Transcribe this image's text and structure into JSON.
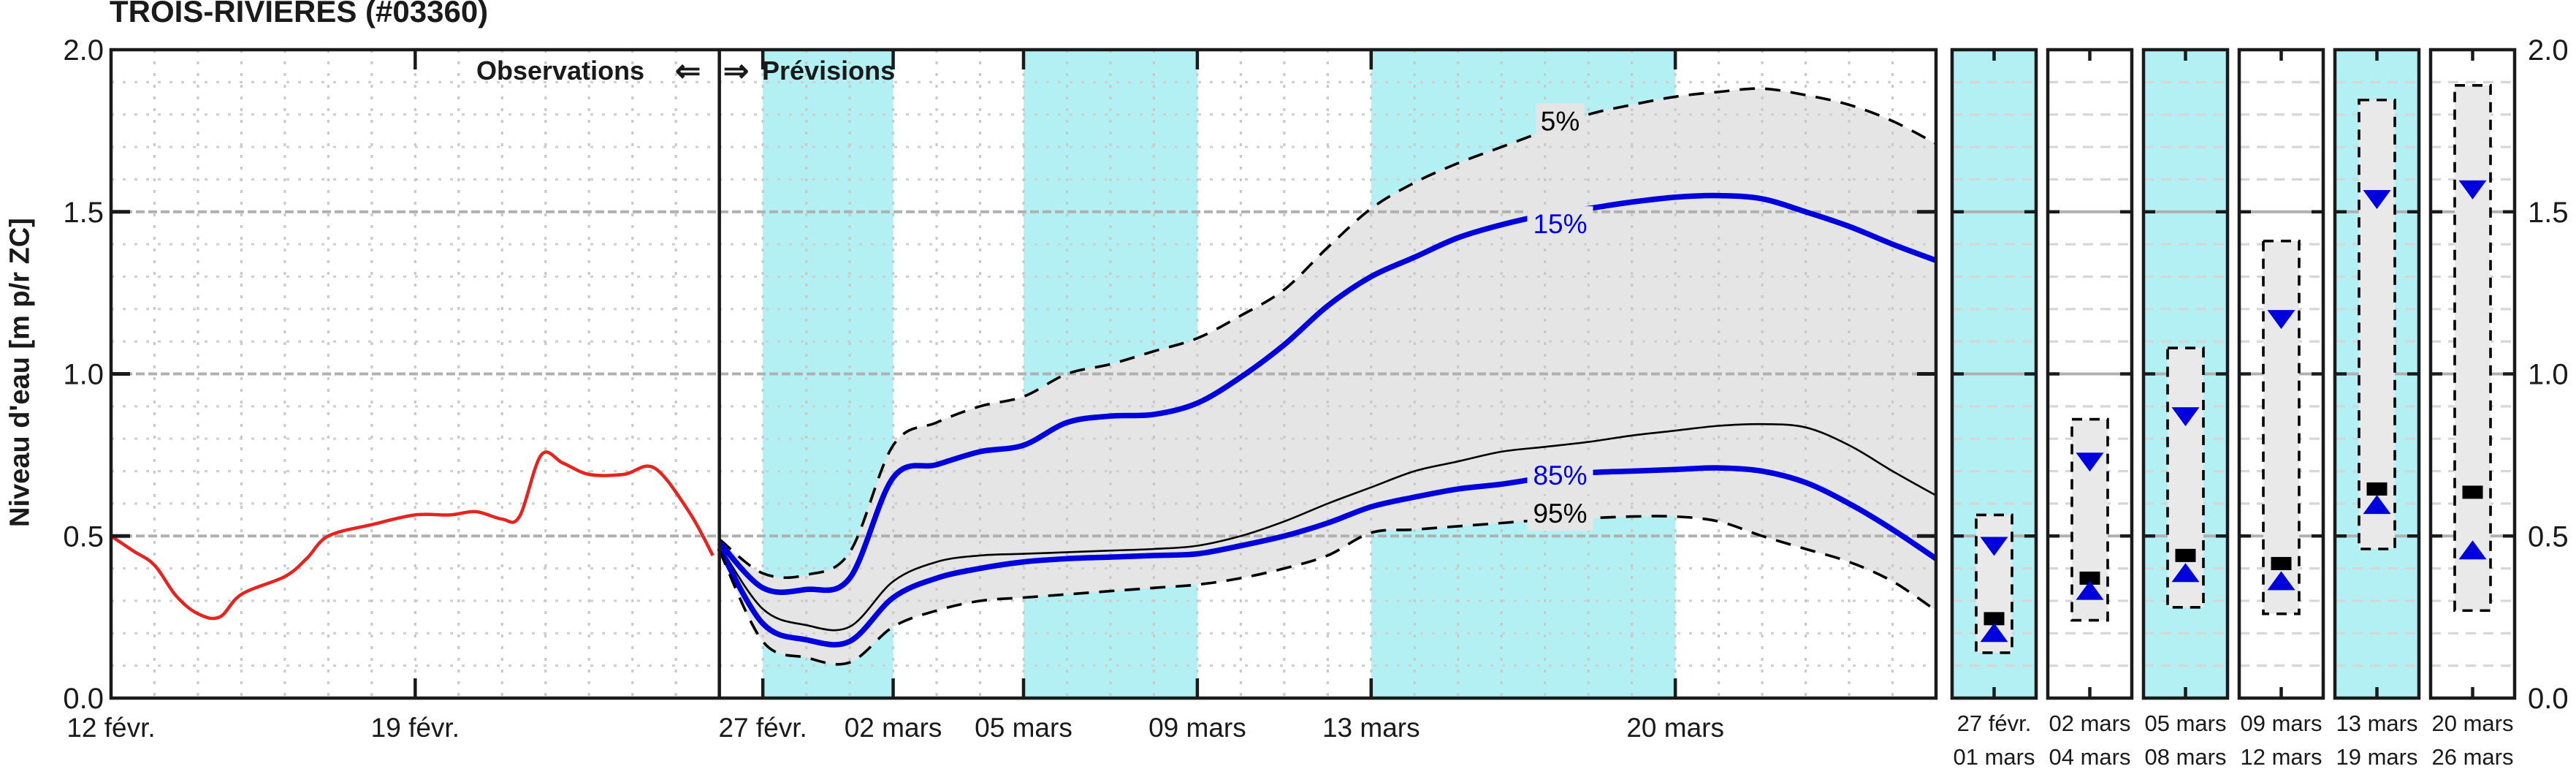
{
  "title": "TROIS-RIVIERES (#03360)",
  "header": {
    "observations": "Observations",
    "arrow_left": "⇐",
    "arrow_right": "⇒",
    "previsions": "Prévisions"
  },
  "y_axis_label": "Niveau d'eau [m p/r ZC]",
  "colors": {
    "observed_red": "#e52420",
    "forecast_blue": "#0000dd",
    "median_black": "#000000",
    "quantile_dash_black": "#000000",
    "band_cyan": "#b2f0f4",
    "fan_fill_gray": "#e5e5e5",
    "panel_box_fill": "#e9e9e9",
    "grid_minor": "#d0d0d0",
    "grid_major": "#b0b0b0",
    "axis_black": "#1a1a1a"
  },
  "chart_data": {
    "type": "line",
    "title": "TROIS-RIVIERES (#03360)",
    "ylabel": "Niveau d'eau [m p/r ZC]",
    "ylim": [
      0.0,
      2.0
    ],
    "y_tick_step_minor": 0.1,
    "y_major_ticks": [
      {
        "value": 2.0,
        "label": "2.0"
      },
      {
        "value": 1.5,
        "label": "1.5"
      },
      {
        "value": 1.0,
        "label": "1.0"
      },
      {
        "value": 0.5,
        "label": "0.5"
      },
      {
        "value": 0.0,
        "label": "0.0"
      }
    ],
    "x_days_total": 42,
    "x_ticks": [
      {
        "day": 0,
        "label": "12 févr."
      },
      {
        "day": 7,
        "label": "19 févr."
      },
      {
        "day": 15,
        "label": "27 févr."
      },
      {
        "day": 18,
        "label": "02 mars"
      },
      {
        "day": 21,
        "label": "05 mars"
      },
      {
        "day": 25,
        "label": "09 mars"
      },
      {
        "day": 29,
        "label": "13 mars"
      },
      {
        "day": 36,
        "label": "20 mars"
      }
    ],
    "forecast_start_day": 14,
    "weekend_bands_days": [
      [
        15,
        18
      ],
      [
        21,
        25
      ],
      [
        29,
        36
      ]
    ],
    "observed_series": {
      "name": "Observations",
      "points": [
        [
          0,
          0.5
        ],
        [
          0.5,
          0.455
        ],
        [
          1,
          0.41
        ],
        [
          1.5,
          0.315
        ],
        [
          2,
          0.26
        ],
        [
          2.5,
          0.25
        ],
        [
          3,
          0.32
        ],
        [
          4,
          0.375
        ],
        [
          4.5,
          0.43
        ],
        [
          5,
          0.5
        ],
        [
          6,
          0.535
        ],
        [
          7,
          0.565
        ],
        [
          7.8,
          0.565
        ],
        [
          8.4,
          0.575
        ],
        [
          9,
          0.552
        ],
        [
          9.4,
          0.56
        ],
        [
          9.9,
          0.75
        ],
        [
          10.4,
          0.725
        ],
        [
          11,
          0.69
        ],
        [
          11.8,
          0.69
        ],
        [
          12.5,
          0.71
        ],
        [
          13.3,
          0.575
        ],
        [
          13.85,
          0.44
        ]
      ]
    },
    "forecast_series": [
      {
        "name": "5%",
        "style": "dashed",
        "values": [
          0.49,
          0.385,
          0.38,
          0.45,
          0.78,
          0.85,
          0.9,
          0.93,
          1.0,
          1.03,
          1.07,
          1.11,
          1.18,
          1.26,
          1.39,
          1.51,
          1.59,
          1.65,
          1.7,
          1.75,
          1.8,
          1.83,
          1.855,
          1.87,
          1.88,
          1.86,
          1.83,
          1.78,
          1.71
        ]
      },
      {
        "name": "15%",
        "style": "blue",
        "values": [
          0.48,
          0.34,
          0.335,
          0.37,
          0.68,
          0.72,
          0.76,
          0.78,
          0.85,
          0.87,
          0.875,
          0.91,
          0.99,
          1.09,
          1.21,
          1.3,
          1.36,
          1.42,
          1.46,
          1.49,
          1.51,
          1.53,
          1.545,
          1.55,
          1.54,
          1.5,
          1.455,
          1.4,
          1.35
        ]
      },
      {
        "name": "50%",
        "style": "median",
        "values": [
          0.47,
          0.275,
          0.225,
          0.22,
          0.36,
          0.42,
          0.44,
          0.445,
          0.45,
          0.455,
          0.46,
          0.47,
          0.5,
          0.545,
          0.6,
          0.65,
          0.7,
          0.73,
          0.76,
          0.775,
          0.79,
          0.81,
          0.825,
          0.84,
          0.845,
          0.835,
          0.78,
          0.7,
          0.625
        ]
      },
      {
        "name": "85%",
        "style": "blue",
        "values": [
          0.462,
          0.23,
          0.18,
          0.175,
          0.31,
          0.37,
          0.4,
          0.42,
          0.43,
          0.435,
          0.44,
          0.445,
          0.47,
          0.5,
          0.54,
          0.59,
          0.62,
          0.645,
          0.66,
          0.68,
          0.695,
          0.7,
          0.705,
          0.71,
          0.7,
          0.665,
          0.6,
          0.52,
          0.43
        ]
      },
      {
        "name": "95%",
        "style": "dashed",
        "values": [
          0.455,
          0.175,
          0.125,
          0.11,
          0.22,
          0.27,
          0.3,
          0.31,
          0.32,
          0.33,
          0.34,
          0.35,
          0.37,
          0.4,
          0.44,
          0.51,
          0.52,
          0.53,
          0.54,
          0.55,
          0.555,
          0.56,
          0.56,
          0.545,
          0.5,
          0.46,
          0.42,
          0.36,
          0.27
        ]
      }
    ],
    "curve_labels": [
      {
        "text": "5%",
        "day": 33.35,
        "value": 1.78,
        "color": "black"
      },
      {
        "text": "15%",
        "day": 33.35,
        "value": 1.463,
        "color": "blue"
      },
      {
        "text": "85%",
        "day": 33.35,
        "value": 0.688,
        "color": "blue"
      },
      {
        "text": "95%",
        "day": 33.35,
        "value": 0.57,
        "color": "black"
      }
    ],
    "panels": [
      {
        "label_top": "27 févr.",
        "label_bottom": "01 mars",
        "background": "cyan",
        "range": [
          0.14,
          0.565
        ],
        "tri_down": 0.47,
        "square": 0.245,
        "tri_up": 0.2
      },
      {
        "label_top": "02 mars",
        "label_bottom": "04 mars",
        "background": "white",
        "range": [
          0.24,
          0.86
        ],
        "tri_down": 0.73,
        "square": 0.37,
        "tri_up": 0.33
      },
      {
        "label_top": "05 mars",
        "label_bottom": "08 mars",
        "background": "cyan",
        "range": [
          0.28,
          1.08
        ],
        "tri_down": 0.87,
        "square": 0.44,
        "tri_up": 0.385
      },
      {
        "label_top": "09 mars",
        "label_bottom": "12 mars",
        "background": "white",
        "range": [
          0.26,
          1.41
        ],
        "tri_down": 1.17,
        "square": 0.415,
        "tri_up": 0.36
      },
      {
        "label_top": "13 mars",
        "label_bottom": "19 mars",
        "background": "cyan",
        "range": [
          0.46,
          1.845
        ],
        "tri_down": 1.54,
        "square": 0.645,
        "tri_up": 0.595
      },
      {
        "label_top": "20 mars",
        "label_bottom": "26 mars",
        "background": "white",
        "range": [
          0.27,
          1.89
        ],
        "tri_down": 1.57,
        "square": 0.635,
        "tri_up": 0.455
      }
    ]
  }
}
